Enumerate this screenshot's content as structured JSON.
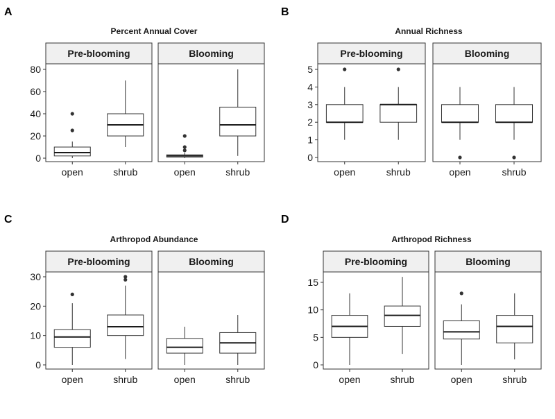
{
  "chart_data": [
    {
      "type": "box",
      "tag": "A",
      "title": "Percent Annual Cover",
      "ylim": [
        -3,
        92
      ],
      "yticks": [
        0,
        20,
        40,
        60,
        80
      ],
      "categories": [
        "open",
        "shrub"
      ],
      "facets": [
        {
          "name": "Pre-blooming",
          "boxes": [
            {
              "category": "open",
              "min": 0,
              "q1": 2,
              "median": 5,
              "q3": 10,
              "max": 15,
              "outliers": [
                25,
                40
              ]
            },
            {
              "category": "shrub",
              "min": 10,
              "q1": 20,
              "median": 30,
              "q3": 40,
              "max": 70,
              "outliers": []
            }
          ]
        },
        {
          "name": "Blooming",
          "boxes": [
            {
              "category": "open",
              "min": 0,
              "q1": 1,
              "median": 2,
              "q3": 3,
              "max": 5,
              "outliers": [
                7,
                10,
                20
              ]
            },
            {
              "category": "shrub",
              "min": 2,
              "q1": 20,
              "median": 30,
              "q3": 46,
              "max": 80,
              "outliers": []
            }
          ]
        }
      ]
    },
    {
      "type": "box",
      "tag": "B",
      "title": "Annual Richness",
      "ylim": [
        -0.25,
        5.3
      ],
      "yticks": [
        0,
        1,
        2,
        3,
        4,
        5
      ],
      "categories": [
        "open",
        "shrub"
      ],
      "facets": [
        {
          "name": "Pre-blooming",
          "boxes": [
            {
              "category": "open",
              "min": 1,
              "q1": 2,
              "median": 2,
              "q3": 3,
              "max": 4,
              "outliers": [
                5
              ]
            },
            {
              "category": "shrub",
              "min": 1,
              "q1": 2,
              "median": 3,
              "q3": 3,
              "max": 4,
              "outliers": [
                5
              ]
            }
          ]
        },
        {
          "name": "Blooming",
          "boxes": [
            {
              "category": "open",
              "min": 1,
              "q1": 2,
              "median": 2,
              "q3": 3,
              "max": 4,
              "outliers": [
                0
              ]
            },
            {
              "category": "shrub",
              "min": 1,
              "q1": 2,
              "median": 2,
              "q3": 3,
              "max": 4,
              "outliers": [
                0
              ]
            }
          ]
        }
      ]
    },
    {
      "type": "box",
      "tag": "C",
      "title": "Arthropod Abundance",
      "ylim": [
        -1.5,
        31
      ],
      "yticks": [
        0,
        10,
        20,
        30
      ],
      "categories": [
        "open",
        "shrub"
      ],
      "facets": [
        {
          "name": "Pre-blooming",
          "boxes": [
            {
              "category": "open",
              "min": 0,
              "q1": 6,
              "median": 9.5,
              "q3": 12,
              "max": 21,
              "outliers": [
                24
              ]
            },
            {
              "category": "shrub",
              "min": 2,
              "q1": 10,
              "median": 13,
              "q3": 17,
              "max": 27,
              "outliers": [
                29,
                30
              ]
            }
          ]
        },
        {
          "name": "Blooming",
          "boxes": [
            {
              "category": "open",
              "min": 0,
              "q1": 4,
              "median": 6,
              "q3": 9,
              "max": 13,
              "outliers": []
            },
            {
              "category": "shrub",
              "min": 0,
              "q1": 4,
              "median": 7.5,
              "q3": 11,
              "max": 17,
              "outliers": []
            }
          ]
        }
      ]
    },
    {
      "type": "box",
      "tag": "D",
      "title": "Arthropod Richness",
      "ylim": [
        -0.8,
        16.5
      ],
      "yticks": [
        0,
        5,
        10,
        15
      ],
      "categories": [
        "open",
        "shrub"
      ],
      "facets": [
        {
          "name": "Pre-blooming",
          "boxes": [
            {
              "category": "open",
              "min": 0,
              "q1": 5,
              "median": 7,
              "q3": 9,
              "max": 13,
              "outliers": []
            },
            {
              "category": "shrub",
              "min": 2,
              "q1": 7,
              "median": 9,
              "q3": 10.7,
              "max": 16,
              "outliers": []
            }
          ]
        },
        {
          "name": "Blooming",
          "boxes": [
            {
              "category": "open",
              "min": 0,
              "q1": 4.7,
              "median": 6,
              "q3": 8,
              "max": 11,
              "outliers": [
                13
              ]
            },
            {
              "category": "shrub",
              "min": 1,
              "q1": 4,
              "median": 7,
              "q3": 9,
              "max": 13,
              "outliers": []
            }
          ]
        }
      ]
    }
  ]
}
